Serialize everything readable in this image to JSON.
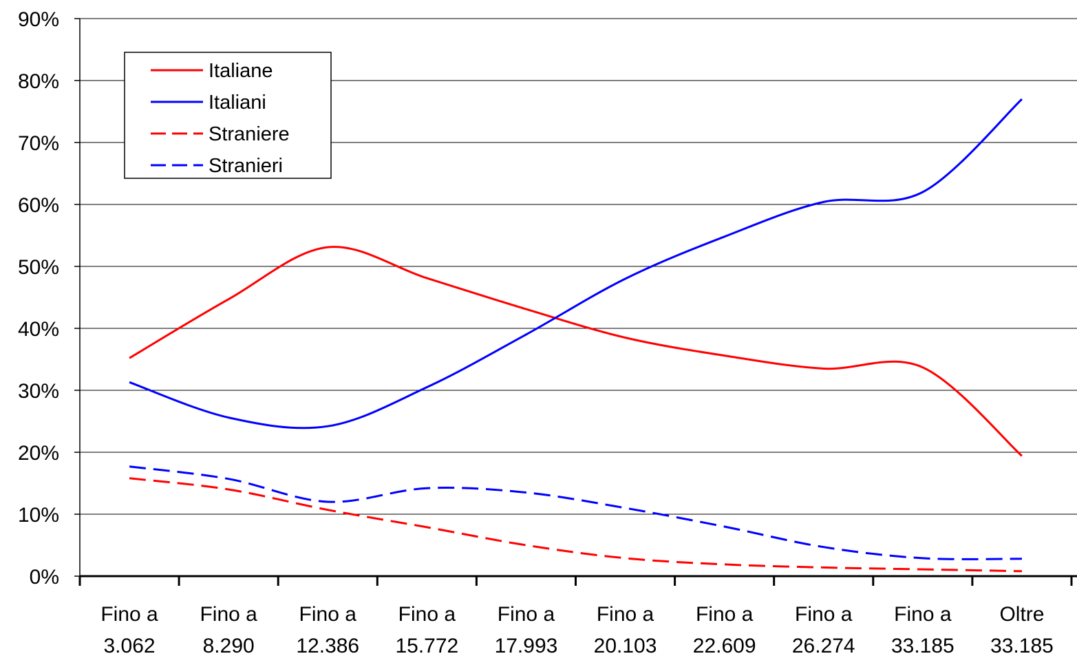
{
  "chart_data": {
    "type": "line",
    "categories": [
      [
        "Fino a",
        "3.062"
      ],
      [
        "Fino a",
        "8.290"
      ],
      [
        "Fino a",
        "12.386"
      ],
      [
        "Fino a",
        "15.772"
      ],
      [
        "Fino a",
        "17.993"
      ],
      [
        "Fino a",
        "20.103"
      ],
      [
        "Fino a",
        "22.609"
      ],
      [
        "Fino a",
        "26.274"
      ],
      [
        "Fino a",
        "33.185"
      ],
      [
        "Oltre",
        "33.185"
      ]
    ],
    "yticks": [
      "0%",
      "10%",
      "20%",
      "30%",
      "40%",
      "50%",
      "60%",
      "70%",
      "80%",
      "90%"
    ],
    "ylim": [
      0,
      90
    ],
    "grid": true,
    "legend_position": "top-left",
    "series": [
      {
        "name": "Italiane",
        "color": "#ff0000",
        "dash": "solid",
        "values": [
          35.2,
          44.7,
          53.1,
          48.1,
          43.1,
          38.5,
          35.6,
          33.5,
          33.7,
          19.4
        ]
      },
      {
        "name": "Italiani",
        "color": "#0000ff",
        "dash": "solid",
        "values": [
          31.3,
          25.6,
          24.2,
          30.5,
          39.0,
          48.0,
          54.8,
          60.4,
          62.0,
          77.0
        ]
      },
      {
        "name": "Straniere",
        "color": "#ff0000",
        "dash": "dashed",
        "values": [
          15.8,
          14.0,
          10.7,
          7.9,
          5.0,
          2.9,
          1.9,
          1.4,
          1.1,
          0.8
        ]
      },
      {
        "name": "Stranieri",
        "color": "#0000ff",
        "dash": "dashed",
        "values": [
          17.7,
          15.7,
          12.0,
          14.2,
          13.5,
          11.0,
          8.0,
          4.7,
          2.9,
          2.8
        ]
      }
    ]
  }
}
